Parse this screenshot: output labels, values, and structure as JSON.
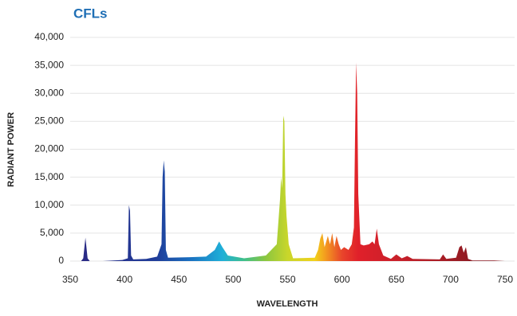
{
  "chart_data": {
    "type": "area",
    "title": "CFLs",
    "xlabel": "WAVELENGTH",
    "ylabel": "RADIANT POWER",
    "x": [
      350,
      360,
      362,
      364,
      366,
      368,
      380,
      398,
      403,
      404,
      405,
      406,
      408,
      420,
      430,
      434,
      435,
      436,
      437,
      438,
      440,
      460,
      475,
      483,
      487,
      490,
      495,
      510,
      530,
      540,
      543,
      544,
      545,
      546,
      547,
      548,
      549,
      551,
      555,
      575,
      578,
      580,
      582,
      584,
      587,
      589,
      591,
      593,
      595,
      597,
      599,
      602,
      606,
      609,
      611,
      612,
      613,
      614,
      615,
      617,
      620,
      625,
      628,
      630,
      632,
      634,
      638,
      645,
      650,
      655,
      660,
      665,
      690,
      693,
      696,
      705,
      708,
      710,
      712,
      714,
      716,
      720,
      740,
      750
    ],
    "values": [
      0,
      0,
      500,
      4200,
      500,
      0,
      0,
      200,
      500,
      10000,
      9000,
      1000,
      300,
      400,
      800,
      3000,
      15000,
      18000,
      16000,
      2000,
      600,
      700,
      800,
      2000,
      3500,
      2500,
      1000,
      500,
      1000,
      3000,
      11000,
      15000,
      13000,
      26000,
      25000,
      12000,
      8000,
      3000,
      500,
      600,
      2000,
      4000,
      5000,
      2500,
      4500,
      3000,
      5000,
      2500,
      4500,
      3000,
      2000,
      2500,
      2000,
      3000,
      6000,
      22000,
      35500,
      30000,
      12000,
      3000,
      2800,
      3000,
      3500,
      3000,
      5800,
      3000,
      1000,
      400,
      1200,
      500,
      900,
      400,
      300,
      1200,
      400,
      600,
      2500,
      2800,
      1500,
      2500,
      400,
      100,
      100,
      0
    ],
    "color_stops": [
      {
        "x": 360,
        "color": "#2a2a85"
      },
      {
        "x": 430,
        "color": "#1f3d9a"
      },
      {
        "x": 460,
        "color": "#1a6fc0"
      },
      {
        "x": 490,
        "color": "#1fb0d8"
      },
      {
        "x": 510,
        "color": "#3fbf8a"
      },
      {
        "x": 530,
        "color": "#8cc63f"
      },
      {
        "x": 550,
        "color": "#c8d62b"
      },
      {
        "x": 575,
        "color": "#f2d11b"
      },
      {
        "x": 585,
        "color": "#f39a1f"
      },
      {
        "x": 600,
        "color": "#e8452b"
      },
      {
        "x": 615,
        "color": "#e0202a"
      },
      {
        "x": 650,
        "color": "#c9202a"
      },
      {
        "x": 700,
        "color": "#a11c24"
      },
      {
        "x": 720,
        "color": "#8c1a22"
      }
    ],
    "xlim": [
      350,
      750
    ],
    "xticks": [
      350,
      400,
      450,
      500,
      550,
      600,
      650,
      700,
      750
    ],
    "ylim": [
      0,
      40000
    ],
    "yticks": [
      0,
      {
        "value": 5000,
        "label": "5,000"
      },
      {
        "value": 10000,
        "label": "10,000"
      },
      {
        "value": 15000,
        "label": "15,000"
      },
      {
        "value": 20000,
        "label": "20,000"
      },
      {
        "value": 25000,
        "label": "25,000"
      },
      {
        "value": 30000,
        "label": "30,000"
      },
      {
        "value": 35000,
        "label": "35,000"
      },
      {
        "value": 40000,
        "label": "40,000"
      }
    ],
    "grid": true
  }
}
